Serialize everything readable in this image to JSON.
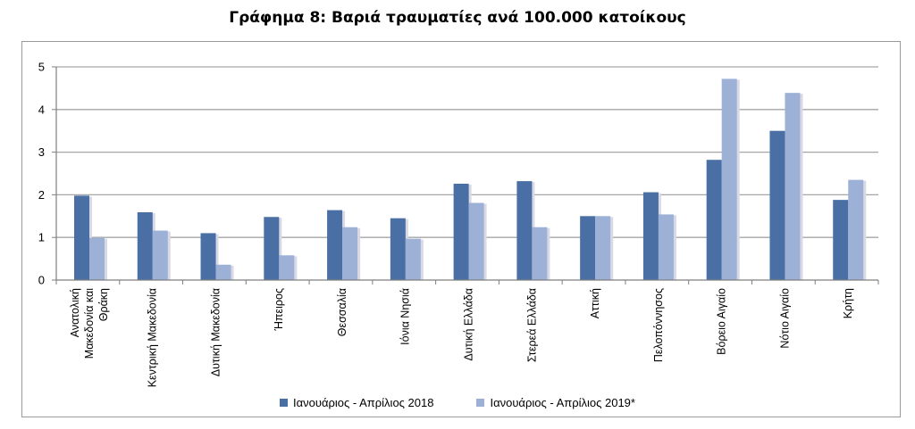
{
  "chart_data": {
    "type": "bar",
    "title": "Γράφημα 8: Βαριά τραυματίες ανά 100.000 κατοίκους",
    "categories": [
      "Ανατολική Μακεδονία και Θράκη",
      "Κεντρική Μακεδονία",
      "Δυτική Μακεδονία",
      "Ήπειρος",
      "Θεσσαλία",
      "Ιόνια Νησιά",
      "Δυτική Ελλάδα",
      "Στερεά Ελλάδα",
      "Αττική",
      "Πελοπόννησος",
      "Βόρειο Αιγαίο",
      "Νότιο Αιγαίο",
      "Κρήτη"
    ],
    "category_lines": [
      [
        "Ανατολική",
        "Μακεδονία και",
        "Θράκη"
      ],
      [
        "Κεντρική Μακεδονία"
      ],
      [
        "Δυτική Μακεδονία"
      ],
      [
        "Ήπειρος"
      ],
      [
        "Θεσσαλία"
      ],
      [
        "Ιόνια Νησιά"
      ],
      [
        "Δυτική Ελλάδα"
      ],
      [
        "Στερεά Ελλάδα"
      ],
      [
        "Αττική"
      ],
      [
        "Πελοπόννησος"
      ],
      [
        "Βόρειο Αιγαίο"
      ],
      [
        "Νότιο Αιγαίο"
      ],
      [
        "Κρήτη"
      ]
    ],
    "series": [
      {
        "name": "Ιανουάριος - Απρίλιος 2018",
        "color": "#4a6fa5",
        "values": [
          1.98,
          1.59,
          1.1,
          1.48,
          1.64,
          1.45,
          2.26,
          2.32,
          1.5,
          2.06,
          2.82,
          3.5,
          1.88
        ]
      },
      {
        "name": "Ιανουάριος - Απρίλιος 2019*",
        "color": "#9db1d6",
        "values": [
          0.99,
          1.16,
          0.36,
          0.58,
          1.24,
          0.97,
          1.81,
          1.24,
          1.5,
          1.54,
          4.72,
          4.39,
          2.35
        ]
      }
    ],
    "ylim": [
      0,
      5
    ],
    "yticks": [
      0,
      1,
      2,
      3,
      4,
      5
    ],
    "grid": true,
    "legend": "bottom"
  }
}
